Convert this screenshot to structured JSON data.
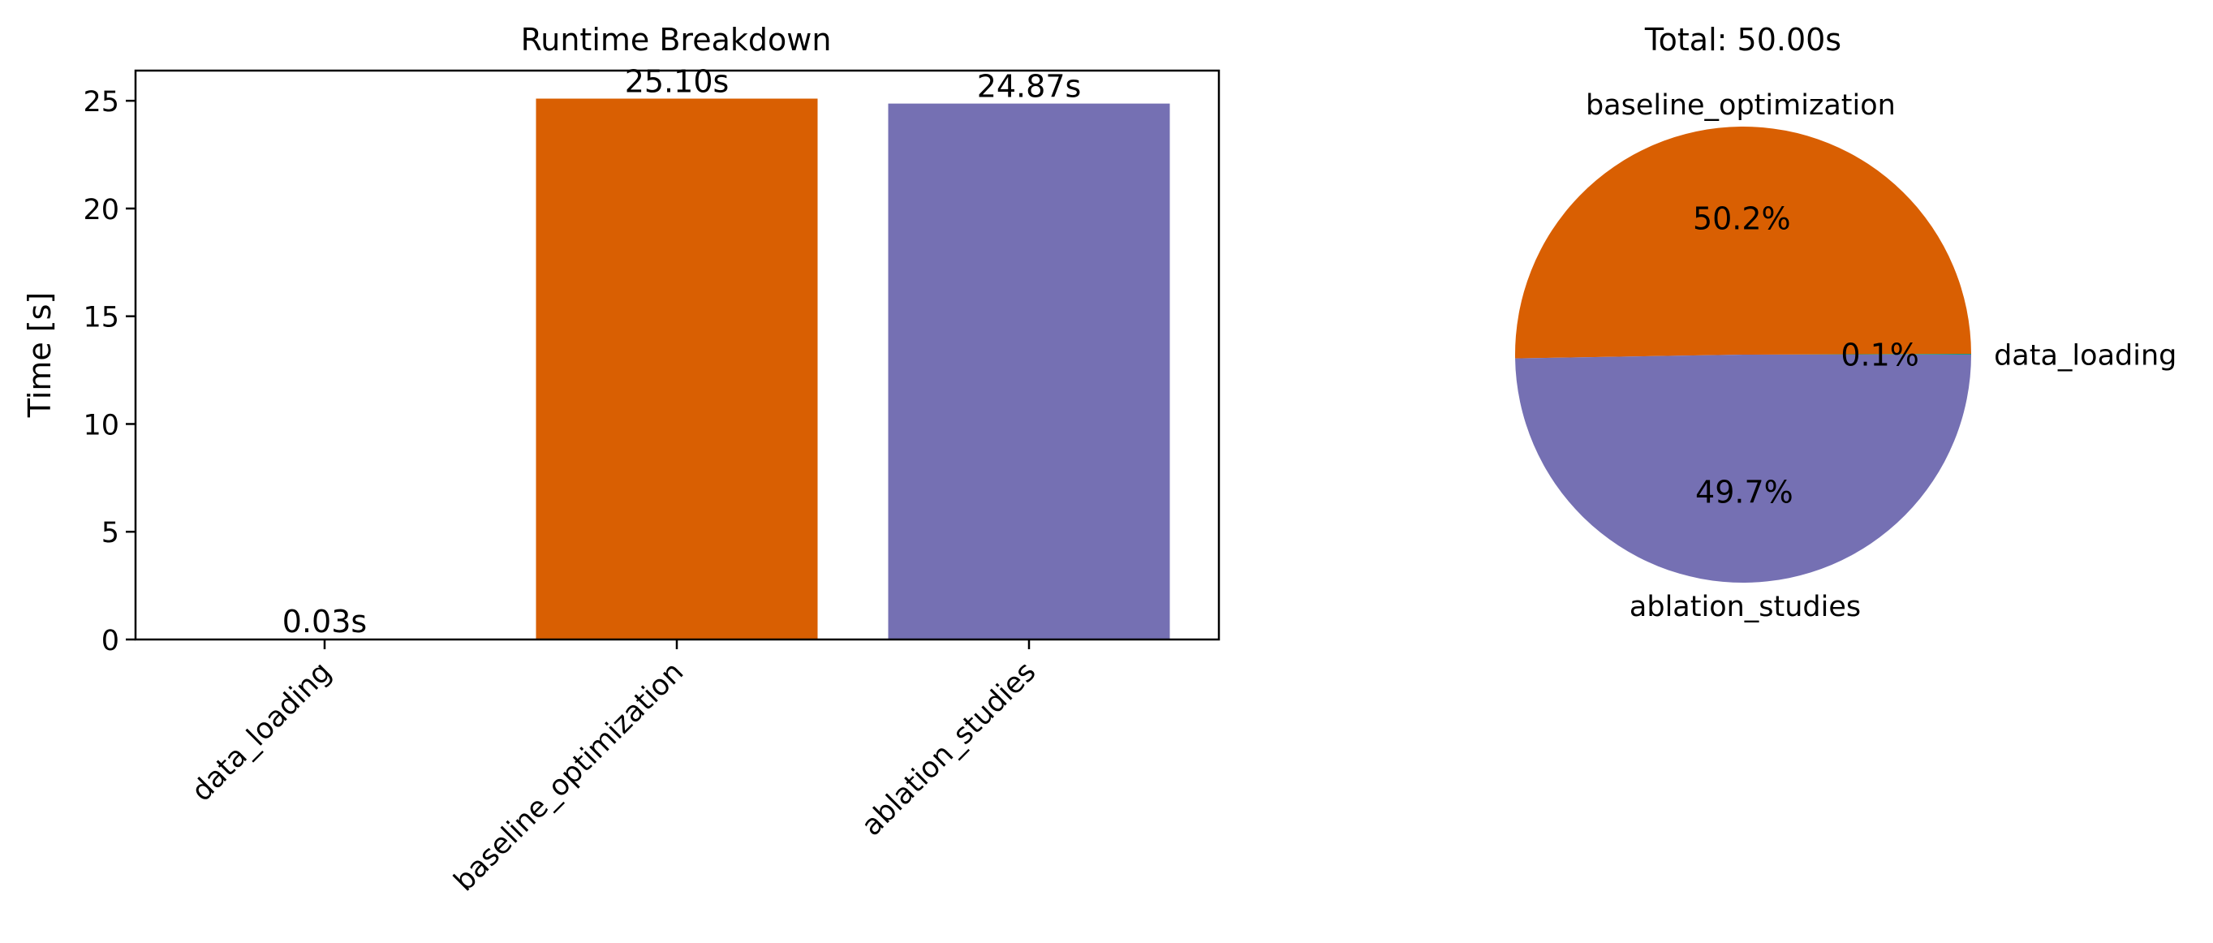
{
  "chart_data": [
    {
      "type": "bar",
      "title": "Runtime Breakdown",
      "xlabel": "",
      "ylabel": "Time [s]",
      "ylim": [
        0,
        26.4
      ],
      "yticks": [
        0,
        5,
        10,
        15,
        20,
        25
      ],
      "categories": [
        "data_loading",
        "baseline_optimization",
        "ablation_studies"
      ],
      "values": [
        0.03,
        25.1,
        24.87
      ],
      "value_labels": [
        "0.03s",
        "25.10s",
        "24.87s"
      ],
      "colors": [
        "#1b9e77",
        "#d95f02",
        "#7570b3"
      ],
      "xtick_rotation": 45,
      "grid": false
    },
    {
      "type": "pie",
      "title": "Total: 50.00s",
      "labels": [
        "data_loading",
        "baseline_optimization",
        "ablation_studies"
      ],
      "values": [
        0.03,
        25.1,
        24.87
      ],
      "pct_labels": [
        "0.1%",
        "50.2%",
        "49.7%"
      ],
      "colors": [
        "#1b9e77",
        "#d95f02",
        "#7570b3"
      ],
      "start_angle": 0,
      "direction": "counterclockwise"
    }
  ]
}
